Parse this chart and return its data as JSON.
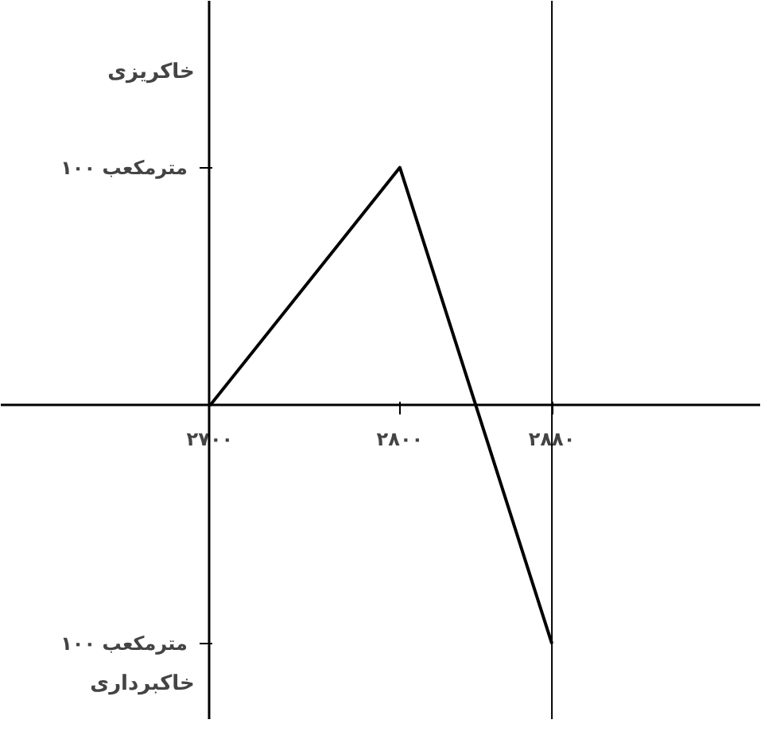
{
  "chart_data": {
    "type": "line",
    "x": [
      2700,
      2800,
      2880
    ],
    "series": [
      {
        "color": "#000000",
        "values": [
          0,
          100,
          -100
        ]
      }
    ],
    "xlim": [
      2590,
      2990
    ],
    "ylim": [
      -132,
      170
    ],
    "xticks": [
      {
        "value": 2700,
        "label": "۲۷۰۰"
      },
      {
        "value": 2800,
        "label": "۲۸۰۰"
      },
      {
        "value": 2880,
        "label": "۲۸۸۰"
      }
    ],
    "yticks": [
      {
        "value": 100,
        "label": "۱۰۰ مترمکعب"
      },
      {
        "value": -100,
        "label": "۱۰۰ مترمکعب"
      }
    ],
    "annotations": [
      "خاکریزی",
      "خاکبرداری"
    ],
    "ref_lines": [
      {
        "axis": "x",
        "value": 2880,
        "color": "#000000",
        "line_style": "solid"
      }
    ],
    "grid": false,
    "line_style": "solid",
    "marker": "none"
  }
}
